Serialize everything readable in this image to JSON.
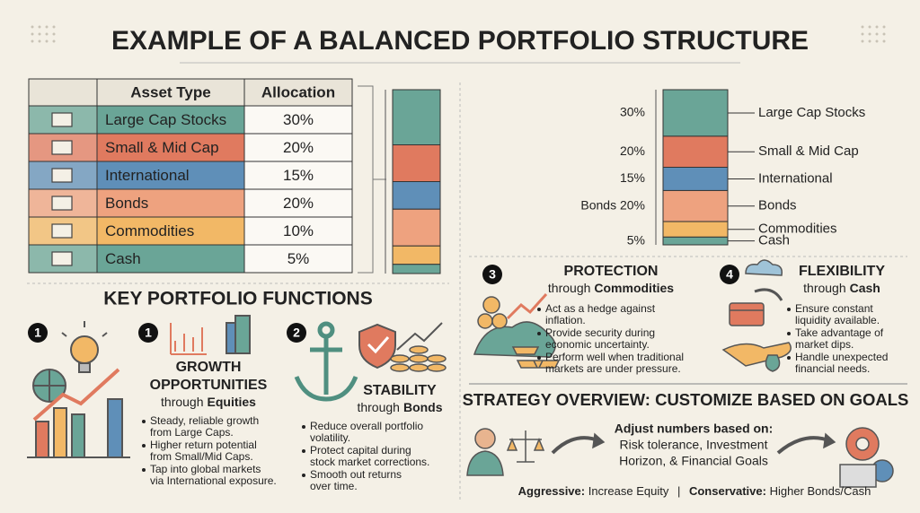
{
  "title": "EXAMPLE OF A BALANCED PORTFOLIO STRUCTURE",
  "table": {
    "header": [
      "Asset Type",
      "Allocation"
    ],
    "rows": [
      [
        "Large Cap Stocks",
        "30%"
      ],
      [
        "Small & Mid Cap",
        "20%"
      ],
      [
        "International",
        "15%"
      ],
      [
        "Bonds",
        "20%"
      ],
      [
        "Commodities",
        "10%"
      ],
      [
        "Cash",
        "5%"
      ]
    ]
  },
  "allocation_chart": {
    "type": "stacked_bar",
    "categories": [
      "Large Cap Stocks",
      "Small & Mid Cap",
      "International",
      "Bonds",
      "Commodities",
      "Cash"
    ],
    "values": [
      30,
      20,
      15,
      20,
      10,
      5
    ],
    "value_labels": [
      "30%",
      "20%",
      "15%",
      "Bonds 20%",
      null,
      "5%"
    ],
    "colors": [
      "#6aa597",
      "#e07a5f",
      "#5f8fb8",
      "#eea27f",
      "#f2b866",
      "#6aa597"
    ]
  },
  "key_functions": {
    "title": "KEY PORTFOLIO FUNCTIONS",
    "badge": "1",
    "items": [
      {
        "number": "1",
        "title": [
          "GROWTH",
          "OPPORTUNITIES"
        ],
        "through": "through",
        "emphasis": "Equities",
        "bullets": [
          [
            "Steady, reliable growth",
            "from Large Caps."
          ],
          [
            "Higher return potential",
            "from Small/Mid Caps."
          ],
          [
            "Tap into global markets",
            "via International exposure."
          ]
        ]
      },
      {
        "number": "2",
        "title": [
          "STABILITY"
        ],
        "through": "through",
        "emphasis": "Bonds",
        "bullets": [
          [
            "Reduce overall portfolio",
            "volatility."
          ],
          [
            "Protect capital during",
            "stock market corrections."
          ],
          [
            "Smooth out returns",
            "over time."
          ]
        ]
      },
      {
        "number": "3",
        "title": [
          "PROTECTION"
        ],
        "through": "through",
        "emphasis": "Commodities",
        "bullets": [
          [
            "Act as a hedge against",
            "inflation."
          ],
          [
            "Provide security during",
            "economic uncertainty."
          ],
          [
            "Perform well when traditional",
            "markets are under pressure."
          ]
        ]
      },
      {
        "number": "4",
        "title": [
          "FLEXIBILITY"
        ],
        "through": "through",
        "emphasis": "Cash",
        "bullets": [
          [
            "Ensure constant",
            "liquidity available."
          ],
          [
            "Take advantage of",
            "market dips."
          ],
          [
            "Handle unexpected",
            "financial needs."
          ]
        ]
      }
    ]
  },
  "strategy": {
    "title": "STRATEGY OVERVIEW: CUSTOMIZE BASED ON GOALS",
    "heading": "Adjust numbers based on:",
    "lines": [
      "Risk tolerance, Investment",
      "Horizon, & Financial Goals"
    ],
    "aggressive_label": "Aggressive:",
    "aggressive_text": "Increase Equity",
    "separator": "|",
    "conservative_label": "Conservative:",
    "conservative_text": "Higher Bonds/Cash"
  }
}
